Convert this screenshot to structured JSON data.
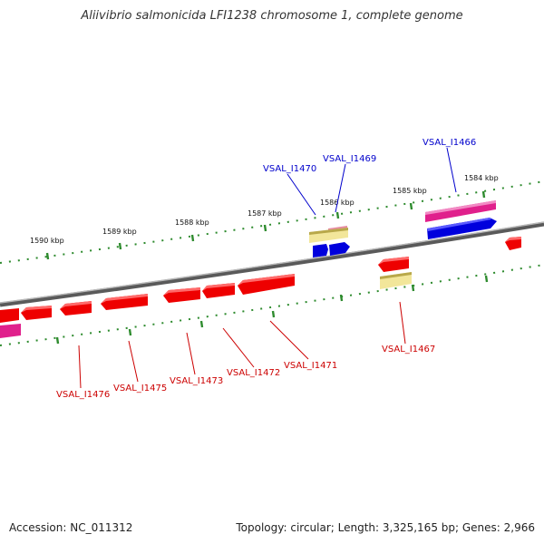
{
  "title": "Aliivibrio salmonicida LFI1238 chromosome 1, complete genome",
  "footer": {
    "accession": "Accession: NC_011312",
    "topology": "Topology: circular; Length: 3,325,165 bp; Genes: 2,966"
  },
  "colors": {
    "backbone": "#7a7a7a",
    "tick": "#2e8b2e",
    "gene_red": "#ee0000",
    "gene_pink": "#e0208c",
    "gene_blue": "#0000dd",
    "gene_yellow": "#f2e69a",
    "label_forward": "#0000cc",
    "label_reverse": "#cc0000"
  },
  "ruler_labels": [
    {
      "label": "1584 kbp"
    },
    {
      "label": "1585 kbp"
    },
    {
      "label": "1586 kbp"
    },
    {
      "label": "1587 kbp"
    },
    {
      "label": "1588 kbp"
    },
    {
      "label": "1589 kbp"
    },
    {
      "label": "1590 kbp"
    }
  ],
  "gene_labels_forward": [
    "VSAL_I1466",
    "VSAL_I1469",
    "VSAL_I1470"
  ],
  "gene_labels_reverse": [
    "VSAL_I1467",
    "VSAL_I1471",
    "VSAL_I1472",
    "VSAL_I1473",
    "VSAL_I1475",
    "VSAL_I1476"
  ]
}
